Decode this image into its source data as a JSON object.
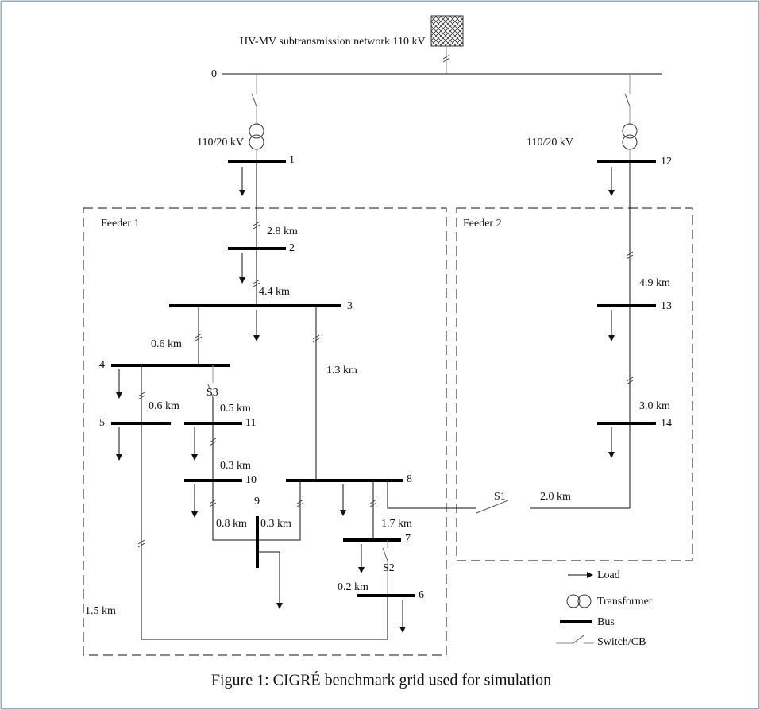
{
  "network": {
    "label": "HV-MV subtransmission network 110 kV"
  },
  "transformers": [
    {
      "label": "110/20 kV"
    },
    {
      "label": "110/20 kV"
    }
  ],
  "buses": [
    "0",
    "1",
    "2",
    "3",
    "4",
    "5",
    "6",
    "7",
    "8",
    "9",
    "10",
    "11",
    "12",
    "13",
    "14"
  ],
  "lines": [
    "2.8 km",
    "4.4 km",
    "0.6 km",
    "1.3 km",
    "0.6 km",
    "0.5 km",
    "0.3 km",
    "0.8 km",
    "0.3 km",
    "1.7 km",
    "0.2 km",
    "1.5 km",
    "4.9 km",
    "3.0 km",
    "2.0 km"
  ],
  "switches": [
    "S1",
    "S2",
    "S3"
  ],
  "feeders": [
    "Feeder 1",
    "Feeder 2"
  ],
  "legend": [
    "Load",
    "Transformer",
    "Bus",
    "Switch/CB"
  ],
  "caption": "Figure 1: CIGRÉ benchmark grid used for simulation"
}
